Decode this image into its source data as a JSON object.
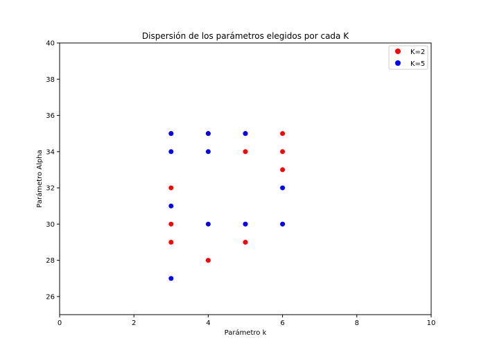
{
  "chart_data": {
    "type": "scatter",
    "title": "Dispersión de los parámetros elegidos por cada K",
    "xlabel": "Parámetro k",
    "ylabel": "Parámetro Alpha",
    "xlim": [
      0,
      10
    ],
    "ylim": [
      25,
      40
    ],
    "xticks": [
      "0",
      "2",
      "4",
      "6",
      "8",
      "10"
    ],
    "yticks": [
      "26",
      "28",
      "30",
      "32",
      "34",
      "36",
      "38",
      "40"
    ],
    "grid": false,
    "legend_position": "top-right",
    "series": [
      {
        "name": "K=2",
        "color": "#ff0000",
        "points": [
          {
            "x": 3,
            "y": 35
          },
          {
            "x": 3,
            "y": 32
          },
          {
            "x": 3,
            "y": 30
          },
          {
            "x": 3,
            "y": 29
          },
          {
            "x": 4,
            "y": 35
          },
          {
            "x": 4,
            "y": 28
          },
          {
            "x": 5,
            "y": 35
          },
          {
            "x": 5,
            "y": 34
          },
          {
            "x": 5,
            "y": 30
          },
          {
            "x": 5,
            "y": 29
          },
          {
            "x": 6,
            "y": 35
          },
          {
            "x": 6,
            "y": 34
          },
          {
            "x": 6,
            "y": 33
          },
          {
            "x": 6,
            "y": 30
          }
        ]
      },
      {
        "name": "K=5",
        "color": "#0000ff",
        "points": [
          {
            "x": 3,
            "y": 35
          },
          {
            "x": 3,
            "y": 34
          },
          {
            "x": 3,
            "y": 31
          },
          {
            "x": 3,
            "y": 27
          },
          {
            "x": 4,
            "y": 35
          },
          {
            "x": 4,
            "y": 34
          },
          {
            "x": 4,
            "y": 30
          },
          {
            "x": 5,
            "y": 35
          },
          {
            "x": 5,
            "y": 30
          },
          {
            "x": 6,
            "y": 32
          },
          {
            "x": 6,
            "y": 30
          }
        ]
      }
    ]
  }
}
